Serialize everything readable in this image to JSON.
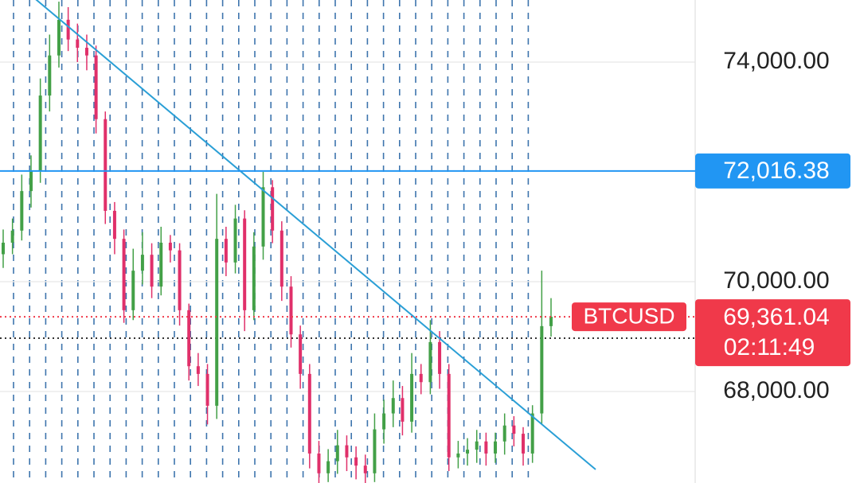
{
  "chart_data": {
    "type": "candlestick",
    "open": [
      70500,
      70710,
      70930,
      71650,
      72010,
      73390,
      74120,
      74770,
      74410,
      74260,
      74120,
      72960,
      71290,
      70780,
      69480,
      70200,
      70490,
      69910,
      70710,
      70570,
      69480,
      68460,
      68320,
      67740,
      70780,
      70350,
      71150,
      69480,
      70640,
      71720,
      70930,
      69910,
      69040,
      68320,
      66870,
      66510,
      66730,
      67020,
      66800,
      66650,
      66510,
      67310,
      67600,
      67880,
      67450,
      68320,
      68170,
      68900,
      68320,
      66800,
      66870,
      66940,
      67090,
      66870,
      67090,
      67380,
      67230,
      66870,
      67600,
      69190
    ],
    "high": [
      70950,
      71150,
      71950,
      72300,
      73700,
      74500,
      75100,
      75000,
      74700,
      74500,
      74300,
      73100,
      71450,
      70950,
      70600,
      70900,
      70700,
      71000,
      70850,
      70700,
      69600,
      68700,
      68500,
      71600,
      71000,
      71400,
      71300,
      70900,
      72000,
      71850,
      71100,
      70100,
      69200,
      68500,
      67100,
      66950,
      67300,
      67200,
      67000,
      66850,
      67600,
      67850,
      68200,
      68100,
      68700,
      68500,
      69300,
      69100,
      68500,
      67100,
      67150,
      67300,
      67250,
      67250,
      67600,
      67550,
      67350,
      67750,
      70200,
      69700
    ],
    "low": [
      70250,
      70500,
      70750,
      71350,
      71800,
      73100,
      73900,
      74200,
      74000,
      73850,
      72700,
      71050,
      70500,
      69250,
      69300,
      69950,
      69700,
      69750,
      70350,
      69200,
      68200,
      68100,
      67400,
      67500,
      70100,
      70150,
      69100,
      69300,
      70400,
      70700,
      69650,
      68800,
      68050,
      66600,
      66300,
      66350,
      66500,
      66550,
      66400,
      66300,
      66350,
      67050,
      67350,
      67200,
      67250,
      67950,
      67950,
      68050,
      66550,
      66600,
      66650,
      66700,
      66650,
      66700,
      66850,
      67000,
      66650,
      66700,
      67400,
      69000
    ],
    "close": [
      70710,
      70930,
      71650,
      72010,
      73390,
      74120,
      74770,
      74410,
      74260,
      74120,
      72960,
      71290,
      70780,
      69480,
      70200,
      70490,
      69910,
      70710,
      70570,
      69480,
      68460,
      68320,
      67740,
      70780,
      70350,
      71150,
      69480,
      70640,
      71720,
      70930,
      69910,
      69040,
      68320,
      66870,
      66510,
      66730,
      67020,
      66800,
      66650,
      66510,
      67310,
      67600,
      67880,
      67450,
      68320,
      68170,
      68900,
      68320,
      66800,
      66870,
      66940,
      67090,
      66870,
      67090,
      67380,
      67230,
      66870,
      67600,
      69190,
      69361.04
    ],
    "up_color": "#43a047",
    "down_color": "#e0306a",
    "ylim": [
      66333,
      75130
    ],
    "yticks": [
      {
        "value": 68000,
        "label": "68,000.00"
      },
      {
        "value": 70000,
        "label": "70,000.00"
      },
      {
        "value": 74000,
        "label": "74,000.00"
      }
    ],
    "grid": true,
    "price_line": {
      "value": 72016.38,
      "label": "72,016.38",
      "color": "#2196f3"
    },
    "last_price": {
      "symbol": "BTCUSD",
      "value": 69361.04,
      "label": "69,361.04",
      "countdown": "02:11:49",
      "color": "#f0394a"
    }
  }
}
